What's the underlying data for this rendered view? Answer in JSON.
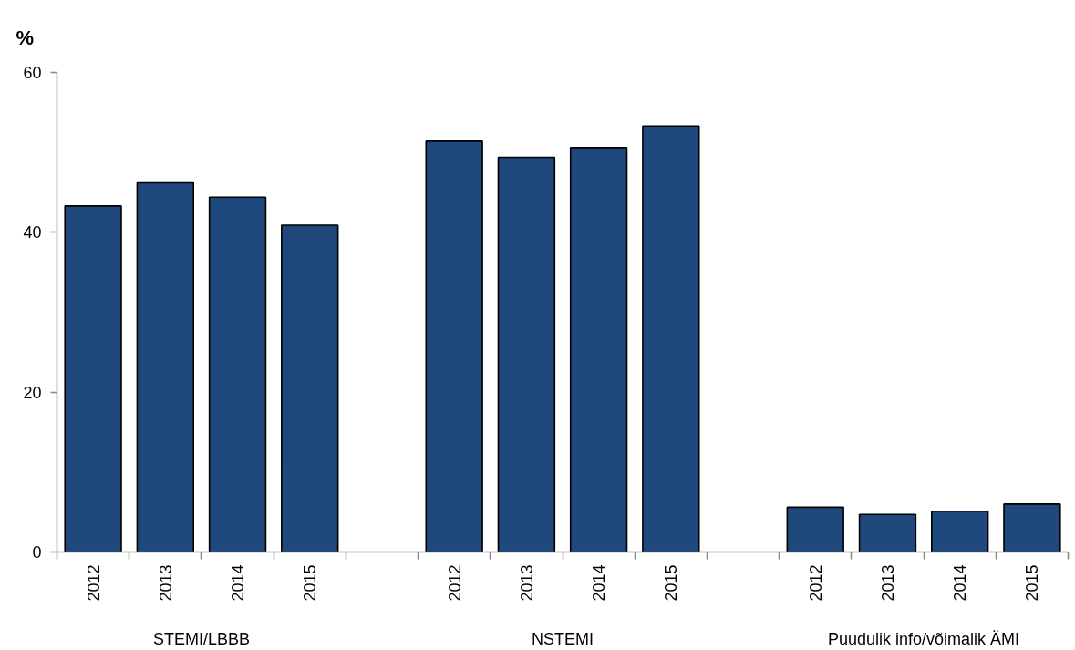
{
  "chart_data": {
    "type": "bar",
    "ylabel": "%",
    "categories": [
      "2012",
      "2013",
      "2014",
      "2015",
      null,
      "2012",
      "2013",
      "2014",
      "2015",
      null,
      "2012",
      "2013",
      "2014",
      "2015"
    ],
    "values": [
      43.3,
      46.2,
      44.4,
      40.9,
      null,
      51.4,
      49.4,
      50.6,
      53.3,
      null,
      5.6,
      4.7,
      5.1,
      6.0
    ],
    "color": "#1f497d",
    "ylim": [
      0,
      60
    ],
    "yticks": [
      0,
      20,
      40,
      60
    ],
    "grid": false,
    "annotations": [
      "STEMI/LBBB",
      "NSTEMI",
      "Puudulik info/võimalik ÄMI"
    ]
  }
}
